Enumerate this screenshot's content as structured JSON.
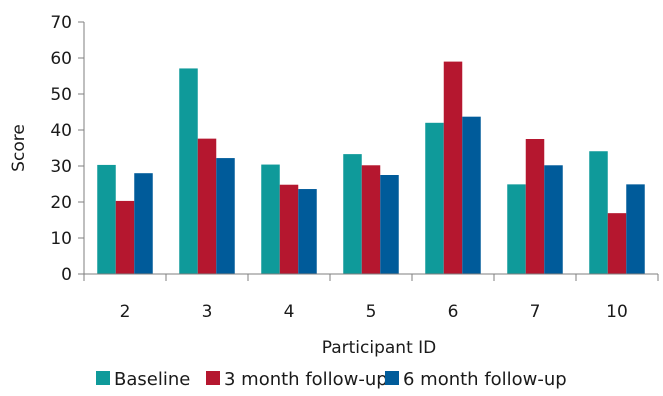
{
  "chart_data": {
    "type": "bar",
    "xlabel": "Participant ID",
    "ylabel": "Score",
    "ylim": [
      0,
      70
    ],
    "yticks": [
      0,
      10,
      20,
      30,
      40,
      50,
      60,
      70
    ],
    "grid": false,
    "legend": "bottom",
    "categories": [
      "2",
      "3",
      "4",
      "5",
      "6",
      "7",
      "10"
    ],
    "series": [
      {
        "name": "Baseline",
        "color": "#0f9a9a",
        "values": [
          30.3,
          57.1,
          30.4,
          33.3,
          42.0,
          24.9,
          34.1
        ]
      },
      {
        "name": "3 month follow-up",
        "color": "#b5172f",
        "values": [
          20.3,
          37.6,
          24.8,
          30.2,
          59.0,
          37.5,
          16.9
        ]
      },
      {
        "name": "6 month follow-up",
        "color": "#005b9a",
        "values": [
          28.0,
          32.2,
          23.6,
          27.5,
          43.7,
          30.2,
          24.9
        ]
      }
    ]
  }
}
